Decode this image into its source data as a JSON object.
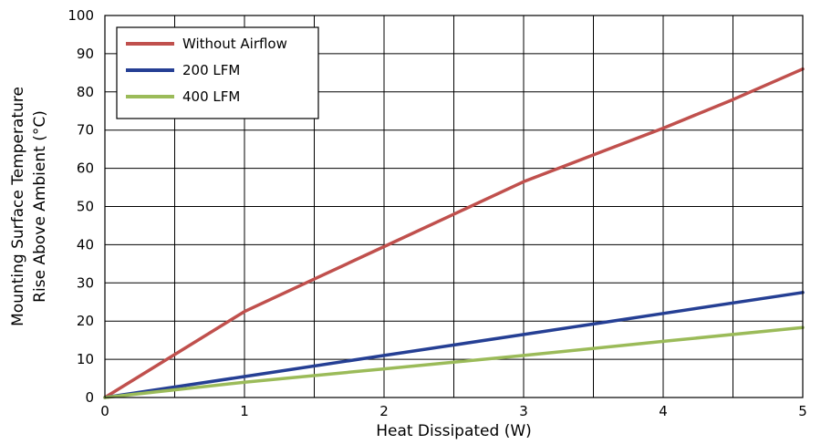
{
  "chart_data": {
    "type": "line",
    "title": "",
    "xlabel": "Heat Dissipated (W)",
    "ylabel_lines": [
      "Mounting Surface Temperature",
      "Rise Above  Ambient (°C)"
    ],
    "xlim": [
      0,
      5
    ],
    "ylim": [
      0,
      100
    ],
    "x_ticks": [
      0,
      1,
      2,
      3,
      4,
      5
    ],
    "x_tick_labels": [
      "0",
      "1",
      "2",
      "3",
      "4",
      "5"
    ],
    "y_ticks": [
      0,
      10,
      20,
      30,
      40,
      50,
      60,
      70,
      80,
      90,
      100
    ],
    "y_tick_labels": [
      "0",
      "10",
      "20",
      "30",
      "40",
      "50",
      "60",
      "70",
      "80",
      "90",
      "100"
    ],
    "grid": true,
    "grid_x_step": 0.5,
    "grid_y_step": 10,
    "legend_position": "top-left",
    "series": [
      {
        "name": "Without Airflow",
        "color": "#c0504d",
        "x": [
          0,
          1,
          1.5,
          2,
          2.5,
          3,
          3.5,
          4,
          4.5,
          5
        ],
        "y": [
          0,
          22.5,
          31,
          39.5,
          48,
          56.5,
          63.5,
          70.5,
          78,
          86
        ]
      },
      {
        "name": "200 LFM",
        "color": "#253f94",
        "x": [
          0,
          1,
          2,
          3,
          4,
          5
        ],
        "y": [
          0,
          5.5,
          11,
          16.5,
          22,
          27.5
        ]
      },
      {
        "name": "400 LFM",
        "color": "#9bbb59",
        "x": [
          0,
          1,
          2,
          3,
          4,
          5
        ],
        "y": [
          0,
          4,
          7.5,
          11,
          14.7,
          18.3
        ]
      }
    ]
  }
}
